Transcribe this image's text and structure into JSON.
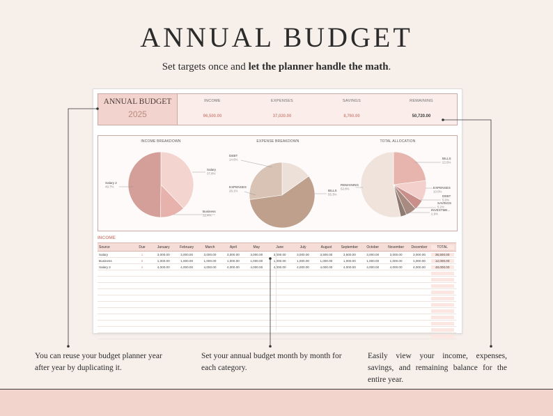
{
  "hero": {
    "title": "ANNUAL BUDGET",
    "subtitle_plain": "Set targets once and ",
    "subtitle_bold": "let the planner handle the math",
    "subtitle_end": "."
  },
  "summary": {
    "brand_title": "ANNUAL BUDGET",
    "year": "2025",
    "columns": [
      {
        "label": "INCOME",
        "value": "96,500.00"
      },
      {
        "label": "EXPENSES",
        "value": "37,020.00"
      },
      {
        "label": "SAVINGS",
        "value": "8,760.00"
      },
      {
        "label": "REMAINING",
        "value": "50,720.00"
      }
    ]
  },
  "charts": {
    "income_title": "INCOME BREAKDOWN",
    "expense_title": "EXPENSE BREAKDOWN",
    "total_title": "TOTAL ALLOCATION"
  },
  "chart_data": [
    {
      "type": "pie",
      "title": "INCOME BREAKDOWN",
      "labels": [
        "Salary",
        "Business",
        "Salary 2"
      ],
      "values": [
        37.8,
        12.4,
        49.7
      ],
      "colors": [
        "#f3d4cf",
        "#e6b2ab",
        "#d49f99"
      ]
    },
    {
      "type": "pie",
      "title": "EXPENSE BREAKDOWN",
      "labels": [
        "DEBT",
        "BILLS",
        "EXPENSES"
      ],
      "values": [
        14.6,
        55.3,
        26.1
      ],
      "colors": [
        "#ece0d8",
        "#bfa08c",
        "#d8c3b5"
      ]
    },
    {
      "type": "pie",
      "title": "TOTAL ALLOCATION",
      "labels": [
        "BILLS",
        "EXPENSES",
        "DEBT",
        "SAVINGS",
        "INVESTME...",
        "REMAINING"
      ],
      "values": [
        22.6,
        10.0,
        5.0,
        5.2,
        2.9,
        52.6
      ],
      "colors": [
        "#e8b4ae",
        "#f3d0cc",
        "#c98f8a",
        "#a88b80",
        "#8e7a70",
        "#efe3dc"
      ]
    }
  ],
  "income": {
    "section_title": "INCOME",
    "headers": [
      "Source",
      "Due",
      "January",
      "February",
      "March",
      "April",
      "May",
      "June",
      "July",
      "August",
      "September",
      "October",
      "November",
      "December",
      "TOTAL"
    ],
    "rows": [
      [
        "Salary",
        "1",
        "3,000.00",
        "3,000.00",
        "3,000.00",
        "3,000.00",
        "3,000.00",
        "3,000.00",
        "3,000.00",
        "3,500.00",
        "3,500.00",
        "3,000.00",
        "3,000.00",
        "3,000.00",
        "36,500.00"
      ],
      [
        "Business",
        "5",
        "1,000.00",
        "1,000.00",
        "1,000.00",
        "1,000.00",
        "1,000.00",
        "1,000.00",
        "1,000.00",
        "1,000.00",
        "1,000.00",
        "1,000.00",
        "1,000.00",
        "1,000.00",
        "12,000.00"
      ],
      [
        "Salary 2",
        "4",
        "4,000.00",
        "4,000.00",
        "4,000.00",
        "4,000.00",
        "4,000.00",
        "4,000.00",
        "4,000.00",
        "4,000.00",
        "4,000.00",
        "4,000.00",
        "4,000.00",
        "4,000.00",
        "48,000.00"
      ]
    ],
    "empty_rows": 11
  },
  "annotations": {
    "left": "You can reuse your budget planner year after year by duplicating it.",
    "middle": "Set your annual budget month by month for each category.",
    "right": "Easily view your income, expenses, savings, and remaining balance for the entire year."
  }
}
